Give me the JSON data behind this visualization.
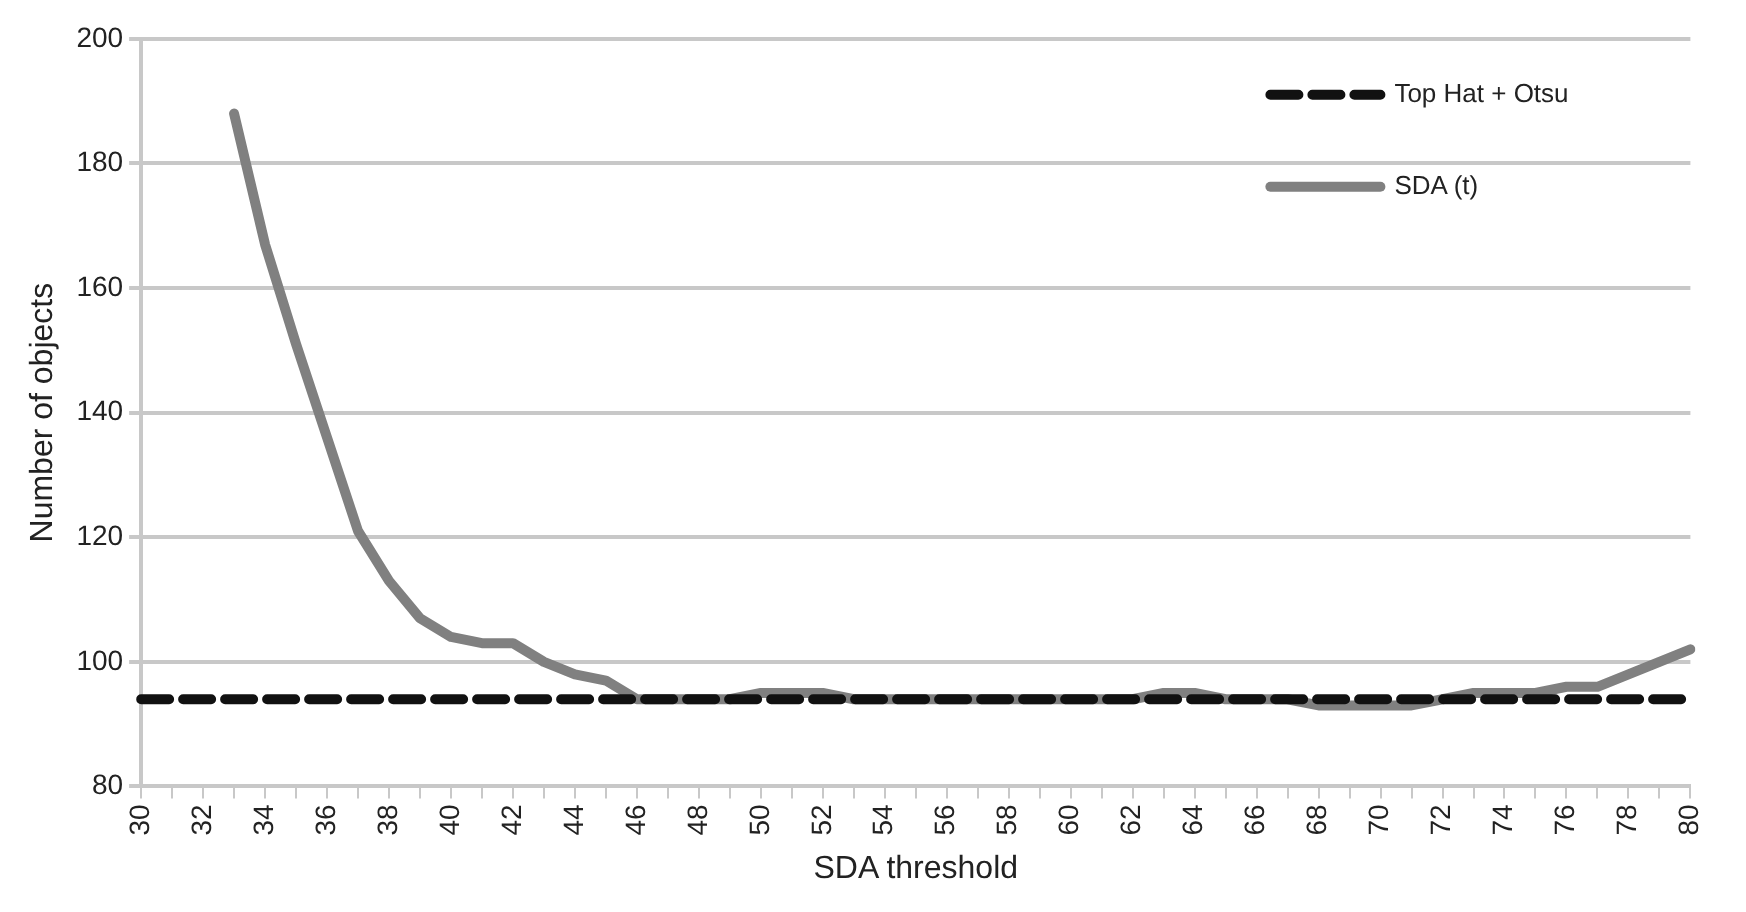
{
  "chart_data": {
    "type": "line",
    "xlabel": "SDA threshold",
    "ylabel": "Number of objects",
    "categories": [
      "30",
      null,
      "32",
      null,
      "34",
      null,
      "36",
      null,
      "38",
      null,
      "40",
      null,
      "42",
      null,
      "44",
      null,
      "46",
      null,
      "48",
      null,
      "50",
      null,
      "52",
      null,
      "54",
      null,
      "56",
      null,
      "58",
      null,
      "60",
      null,
      "62",
      null,
      "64",
      null,
      "66",
      null,
      "68",
      null,
      "70",
      null,
      "72",
      null,
      "74",
      null,
      "76",
      null,
      "78",
      null,
      "80"
    ],
    "series": [
      {
        "name": "Top Hat + Otsu",
        "color": "#111111",
        "line_style": "dashed",
        "values": [
          94,
          94,
          94,
          94,
          94,
          94,
          94,
          94,
          94,
          94,
          94,
          94,
          94,
          94,
          94,
          94,
          94,
          94,
          94,
          94,
          94,
          94,
          94,
          94,
          94,
          94,
          94,
          94,
          94,
          94,
          94,
          94,
          94,
          94,
          94,
          94,
          94,
          94,
          94,
          94,
          94,
          94,
          94,
          94,
          94,
          94,
          94,
          94,
          94,
          94,
          94
        ]
      },
      {
        "name": "SDA (t)",
        "color": "#808080",
        "line_style": "solid",
        "values": [
          null,
          null,
          null,
          188,
          167,
          151,
          136,
          121,
          113,
          107,
          104,
          103,
          103,
          100,
          98,
          97,
          94,
          94,
          94,
          94,
          95,
          95,
          95,
          94,
          94,
          94,
          94,
          94,
          94,
          94,
          94,
          94,
          94,
          95,
          95,
          94,
          94,
          94,
          93,
          93,
          93,
          93,
          94,
          95,
          95,
          95,
          96,
          96,
          98,
          100,
          102
        ]
      }
    ],
    "ylim": [
      80,
      200
    ],
    "yticks": [
      80,
      100,
      120,
      140,
      160,
      180,
      200
    ],
    "grid": "y",
    "legend": "top right",
    "marker": "none"
  }
}
